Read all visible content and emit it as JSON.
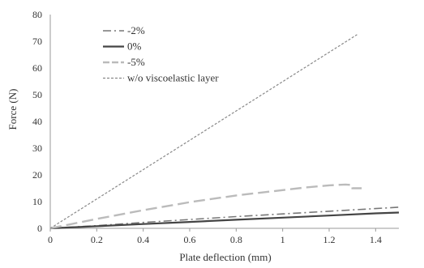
{
  "chart_data": {
    "type": "line",
    "title": "",
    "xlabel": "Plate deflection (mm)",
    "ylabel": "Force (N)",
    "xlim": [
      0,
      1.5
    ],
    "ylim": [
      0,
      80
    ],
    "x_ticks": [
      0,
      0.2,
      0.4,
      0.6,
      0.8,
      1,
      1.2,
      1.4
    ],
    "x_tick_labels": [
      "0",
      "0.2",
      "0.4",
      "0.6",
      "0.8",
      "1",
      "1.2",
      "1.4"
    ],
    "y_ticks": [
      0,
      10,
      20,
      30,
      40,
      50,
      60,
      70,
      80
    ],
    "y_tick_labels": [
      "0",
      "10",
      "20",
      "30",
      "40",
      "50",
      "60",
      "70",
      "80"
    ],
    "grid": false,
    "legend_position": "top-left",
    "series": [
      {
        "name": "-2%",
        "color": "#777777",
        "style": "dash-dot",
        "x": [
          0,
          0.2,
          0.4,
          0.6,
          0.8,
          1.0,
          1.2,
          1.4,
          1.5
        ],
        "y": [
          0,
          1.0,
          2.2,
          3.3,
          4.4,
          5.4,
          6.4,
          7.4,
          7.9
        ]
      },
      {
        "name": "0%",
        "color": "#444444",
        "style": "solid",
        "x": [
          0,
          0.2,
          0.4,
          0.6,
          0.8,
          1.0,
          1.2,
          1.4,
          1.5
        ],
        "y": [
          0,
          0.8,
          1.6,
          2.4,
          3.2,
          4.0,
          4.8,
          5.6,
          5.9
        ]
      },
      {
        "name": "-5%",
        "color": "#bbbbbb",
        "style": "long-dash",
        "x": [
          0,
          0.2,
          0.4,
          0.6,
          0.8,
          1.0,
          1.1,
          1.2,
          1.27,
          1.3,
          1.3,
          1.34
        ],
        "y": [
          0,
          3.5,
          6.8,
          9.8,
          12.3,
          14.3,
          15.3,
          16.1,
          16.4,
          16.2,
          15.0,
          15.0
        ]
      },
      {
        "name": "w/o viscoelastic layer",
        "color": "#888888",
        "style": "dotted",
        "x": [
          0,
          1.32
        ],
        "y": [
          0,
          72.5
        ]
      }
    ]
  }
}
